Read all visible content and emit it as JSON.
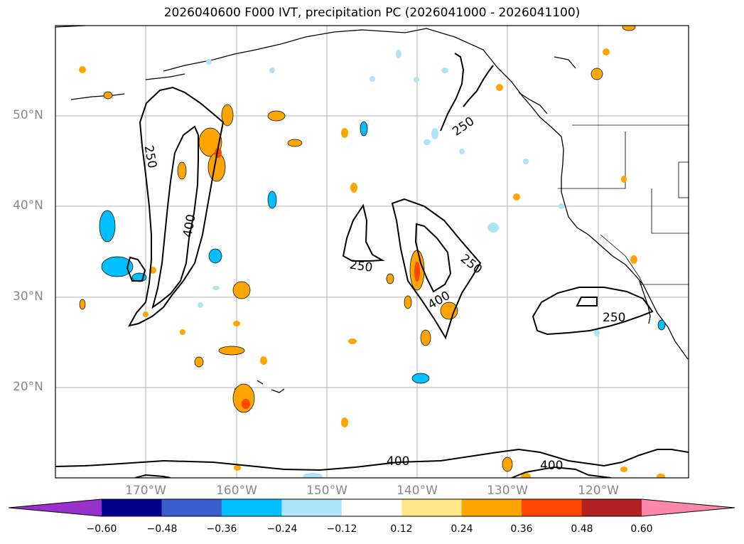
{
  "title": "2026040600 F000 IVT, precipitation PC (2026041000 - 2026041100)",
  "lat_labels": [
    "50°N",
    "40°N",
    "30°N",
    "20°N"
  ],
  "lon_labels": [
    "170°W",
    "160°W",
    "150°W",
    "140°W",
    "130°W",
    "120°W"
  ],
  "contour_labels": [
    "250",
    "400",
    "250",
    "250",
    "400",
    "250",
    "250",
    "400"
  ],
  "colorbar": {
    "ticks": [
      "−0.60",
      "−0.48",
      "−0.36",
      "−0.24",
      "−0.12",
      "0.12",
      "0.24",
      "0.36",
      "0.48",
      "0.60"
    ],
    "colors": [
      "#9932cc",
      "#00008b",
      "#3a5fcd",
      "#00bfff",
      "#aee4fa",
      "#ffffff",
      "#ffe88a",
      "#ffa500",
      "#ff4500",
      "#b22222",
      "#ff88aa"
    ]
  }
}
